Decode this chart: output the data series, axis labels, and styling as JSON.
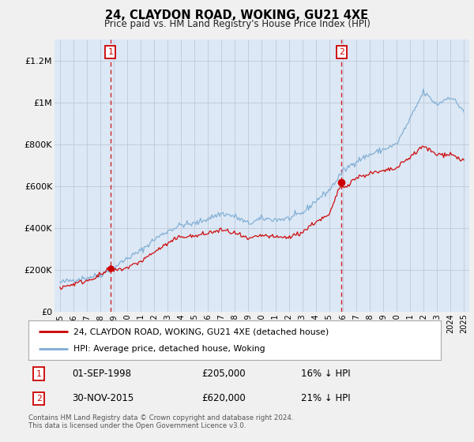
{
  "title": "24, CLAYDON ROAD, WOKING, GU21 4XE",
  "subtitle": "Price paid vs. HM Land Registry's House Price Index (HPI)",
  "legend_line1": "24, CLAYDON ROAD, WOKING, GU21 4XE (detached house)",
  "legend_line2": "HPI: Average price, detached house, Woking",
  "annotation1_label": "1",
  "annotation1_date": "01-SEP-1998",
  "annotation1_price": "£205,000",
  "annotation1_hpi": "16% ↓ HPI",
  "annotation1_year": 1998.75,
  "annotation1_value": 205000,
  "annotation2_label": "2",
  "annotation2_date": "30-NOV-2015",
  "annotation2_price": "£620,000",
  "annotation2_hpi": "21% ↓ HPI",
  "annotation2_year": 2015.92,
  "annotation2_value": 620000,
  "footer": "Contains HM Land Registry data © Crown copyright and database right 2024.\nThis data is licensed under the Open Government Licence v3.0.",
  "hpi_color": "#7eadd4",
  "price_color": "#cc0000",
  "annotation_color": "#cc0000",
  "bg_color": "#f0f0f0",
  "plot_bg_color": "#dce8f5",
  "grid_color": "#c0c8d8",
  "ylim": [
    0,
    1300000
  ],
  "yticks": [
    0,
    200000,
    400000,
    600000,
    800000,
    1000000,
    1200000
  ],
  "ytick_labels": [
    "£0",
    "£200K",
    "£400K",
    "£600K",
    "£800K",
    "£1M",
    "£1.2M"
  ],
  "xlim_start": 1994.6,
  "xlim_end": 2025.4,
  "xticks": [
    1995,
    1996,
    1997,
    1998,
    1999,
    2000,
    2001,
    2002,
    2003,
    2004,
    2005,
    2006,
    2007,
    2008,
    2009,
    2010,
    2011,
    2012,
    2013,
    2014,
    2015,
    2016,
    2017,
    2018,
    2019,
    2020,
    2021,
    2022,
    2023,
    2024,
    2025
  ]
}
